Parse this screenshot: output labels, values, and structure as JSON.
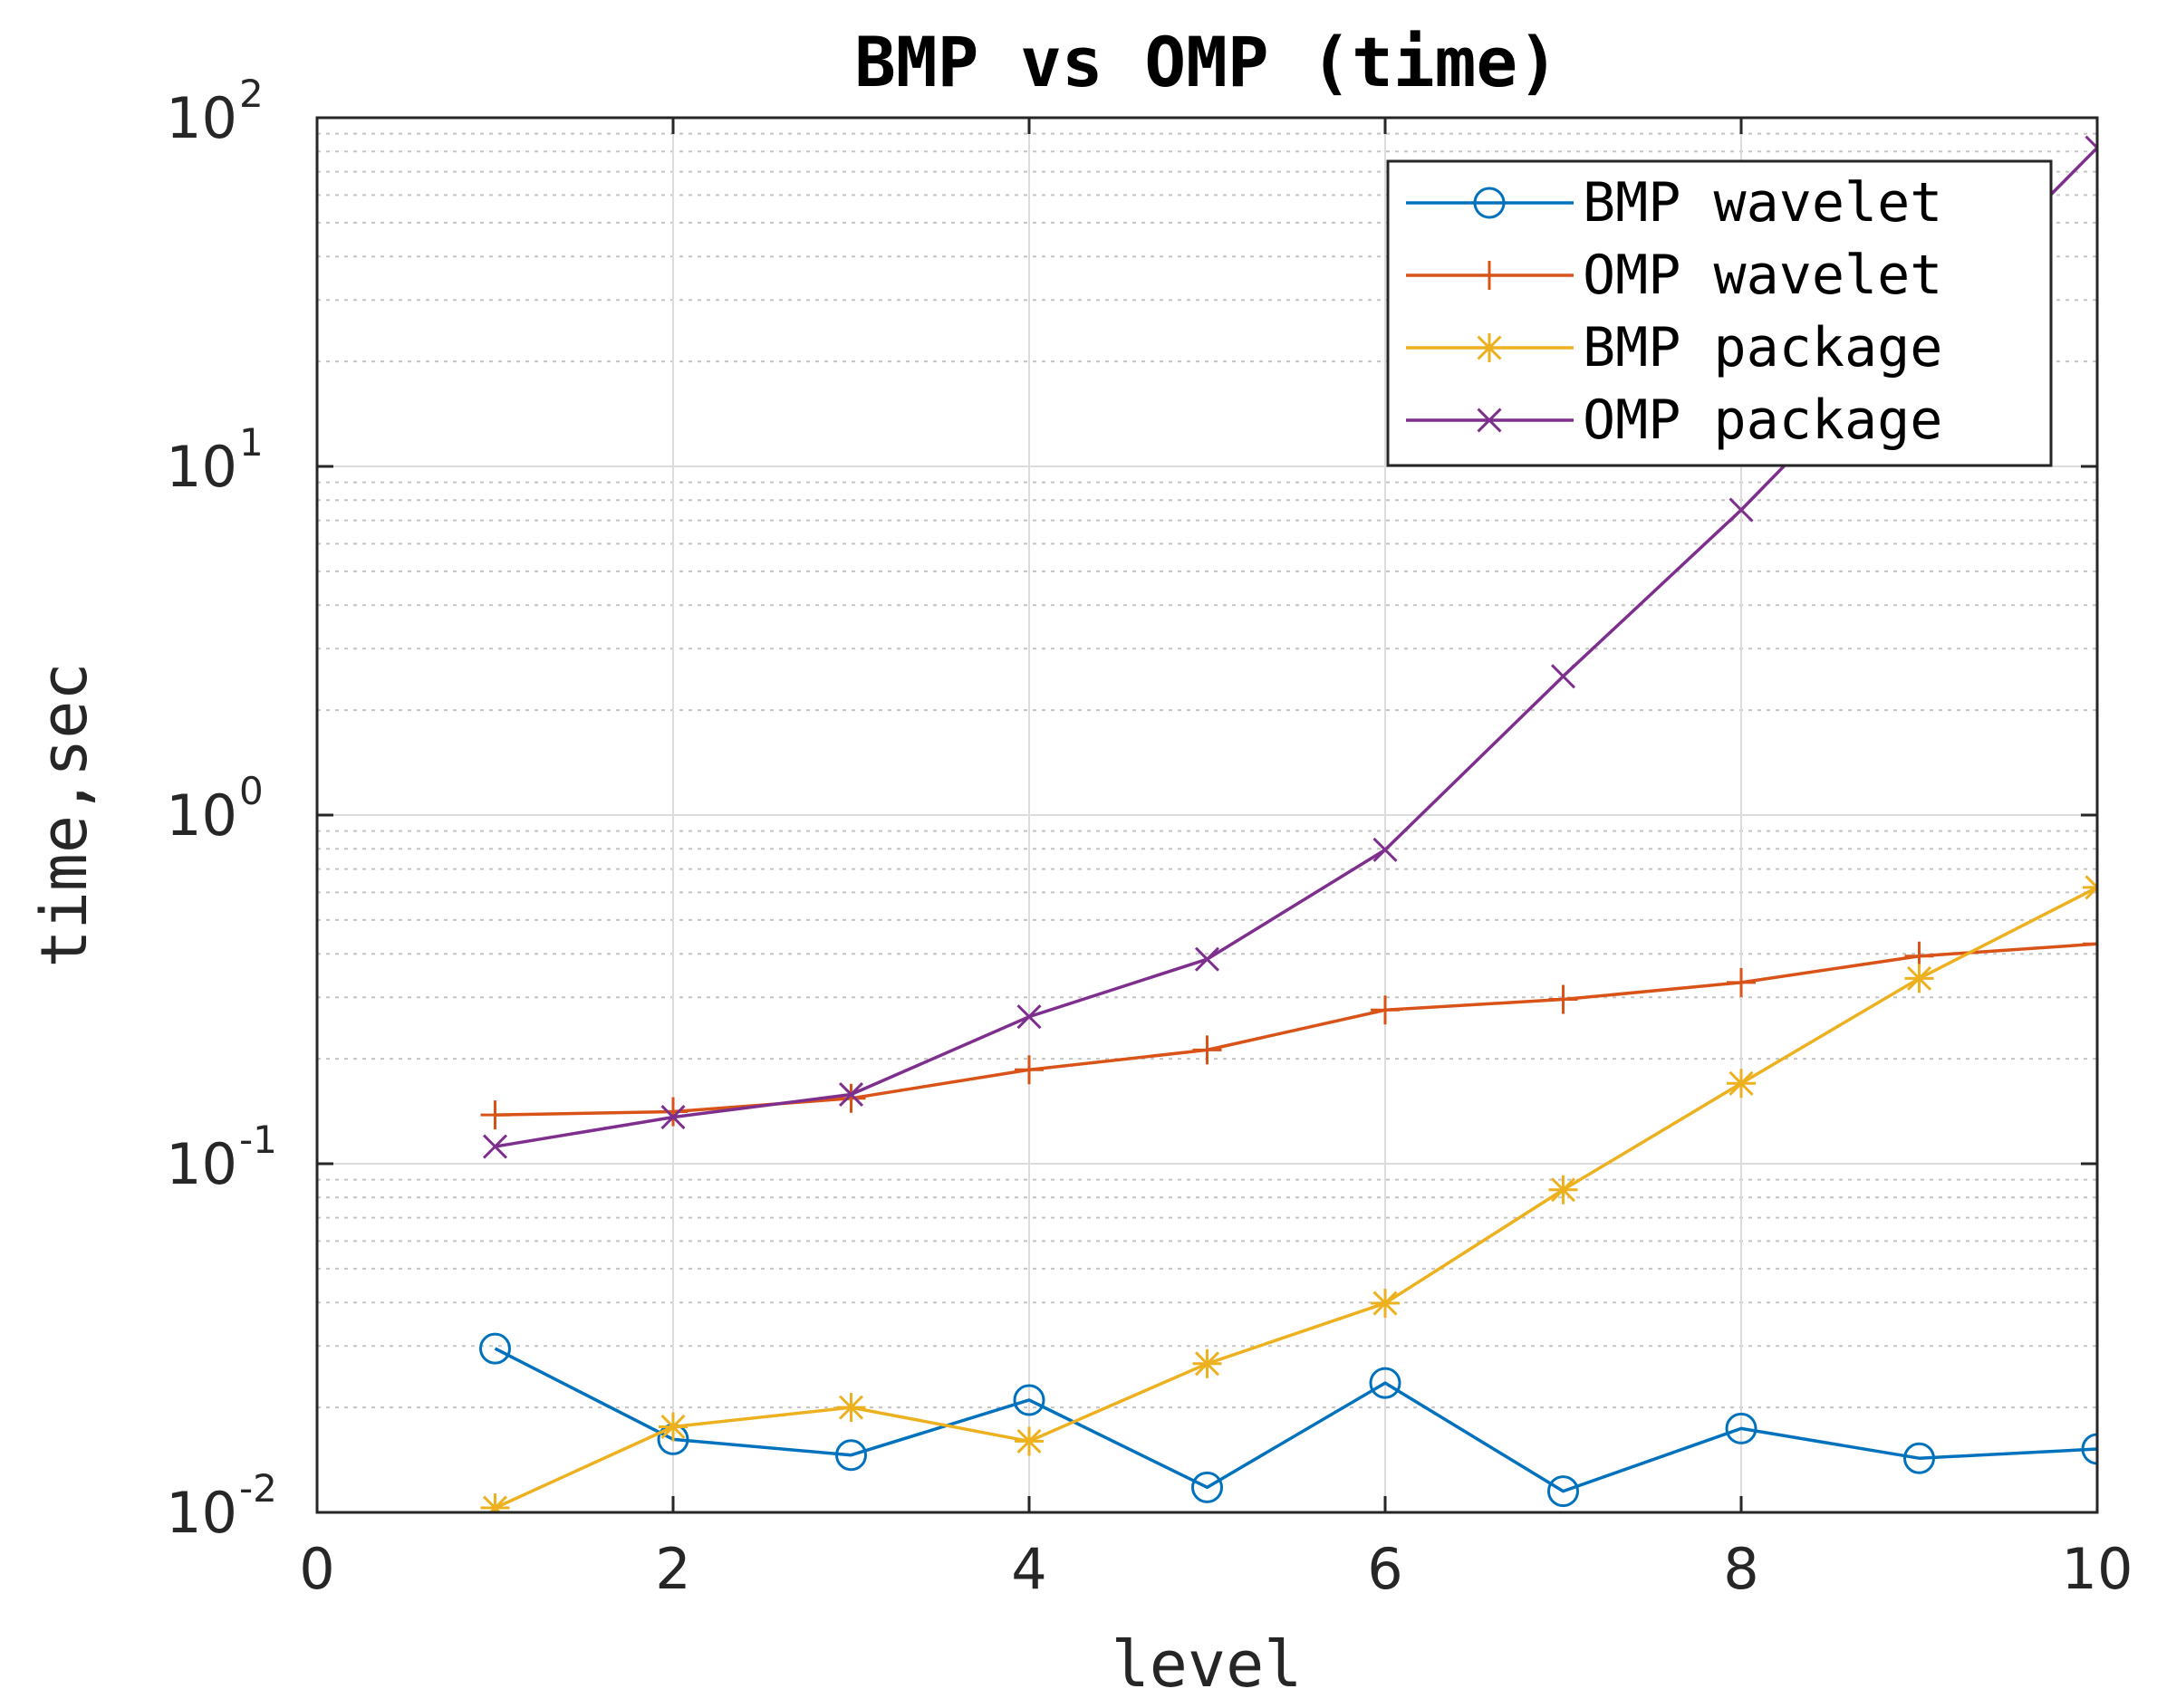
{
  "chart_data": {
    "type": "line",
    "title": "BMP vs OMP (time)",
    "xlabel": "level",
    "ylabel": "time,sec",
    "xlim": [
      0,
      10
    ],
    "ylim": [
      0.01,
      100
    ],
    "yscale": "log",
    "grid": true,
    "legend_position": "top-right",
    "x_ticks": [
      0,
      2,
      4,
      6,
      8,
      10
    ],
    "y_ticks": [
      {
        "value": 0.01,
        "base": "10",
        "exp": "-2"
      },
      {
        "value": 0.1,
        "base": "10",
        "exp": "-1"
      },
      {
        "value": 1,
        "base": "10",
        "exp": "0"
      },
      {
        "value": 10,
        "base": "10",
        "exp": "1"
      },
      {
        "value": 100,
        "base": "10",
        "exp": "2"
      }
    ],
    "x": [
      1,
      2,
      3,
      4,
      5,
      6,
      7,
      8,
      9,
      10
    ],
    "series": [
      {
        "name": "BMP wavelet",
        "color": "#0072BD",
        "marker": "circle",
        "values": [
          0.0295,
          0.0162,
          0.0146,
          0.021,
          0.0118,
          0.0235,
          0.0115,
          0.0174,
          0.0143,
          0.0152
        ]
      },
      {
        "name": "OMP wavelet",
        "color": "#D95319",
        "marker": "plus",
        "values": [
          0.138,
          0.141,
          0.154,
          0.186,
          0.212,
          0.276,
          0.296,
          0.331,
          0.394,
          0.427
        ]
      },
      {
        "name": "BMP package",
        "color": "#EDB120",
        "marker": "asterisk",
        "values": [
          0.0103,
          0.0176,
          0.02,
          0.016,
          0.0267,
          0.0398,
          0.0842,
          0.17,
          0.34,
          0.62
        ]
      },
      {
        "name": "OMP package",
        "color": "#7E2F8E",
        "marker": "x",
        "values": [
          0.112,
          0.136,
          0.158,
          0.264,
          0.386,
          0.795,
          2.5,
          7.5,
          25.0,
          82.0
        ]
      }
    ]
  }
}
